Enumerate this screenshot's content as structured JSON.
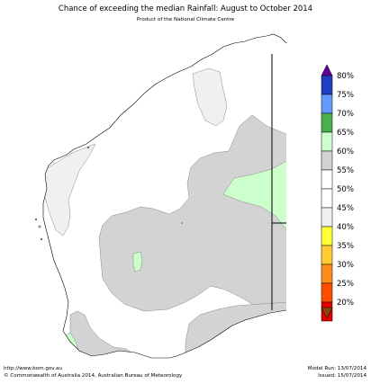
{
  "header": {
    "title": "Chance of exceeding the median Rainfall: August to October 2014",
    "subtitle": "Product of the National Climate Centre"
  },
  "legend": {
    "items": [
      {
        "label": "80%",
        "color": "#1f3fbf"
      },
      {
        "label": "75%",
        "color": "#6699ff"
      },
      {
        "label": "70%",
        "color": "#4cae4c"
      },
      {
        "label": "65%",
        "color": "#ccffcc"
      },
      {
        "label": "60%",
        "color": "#d3d3d3"
      },
      {
        "label": "55%",
        "color": "#ffffff"
      },
      {
        "label": "50%",
        "color": "#ffffff"
      },
      {
        "label": "45%",
        "color": "#f0f0f0"
      },
      {
        "label": "40%",
        "color": "#ffff33"
      },
      {
        "label": "35%",
        "color": "#ffcc33"
      },
      {
        "label": "30%",
        "color": "#ff8c1a"
      },
      {
        "label": "25%",
        "color": "#ff4d00"
      },
      {
        "label": "20%",
        "color": "#e60000"
      }
    ],
    "top_arrow_color": "#660099",
    "bottom_arrow_color": "#8b4513"
  },
  "map": {
    "colors": {
      "land": "#ffffff",
      "coast": "#000000",
      "border": "#000000",
      "band_45": "#f0f0f0",
      "band_60": "#d3d3d3",
      "band_65": "#ccffcc"
    }
  },
  "footer": {
    "url": "http://www.bom.gov.au",
    "copyright": "©  Commonwealth of Australia 2014, Australian Bureau of Meteorology",
    "model_run": "Model Run: 13/07/2014",
    "issued": "Issued: 15/07/2014"
  }
}
